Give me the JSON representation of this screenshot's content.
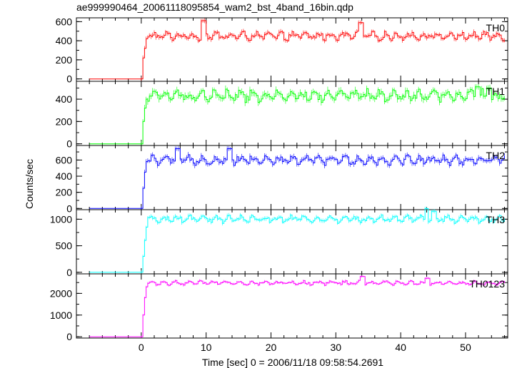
{
  "title": "ae999990464_20061118095854_wam2_bst_4band_16bin.qdp",
  "ylabel": "Counts/sec",
  "xlabel": "Time [sec] 0 = 2006/11/18 09:58:54.2691",
  "chart_data": [
    {
      "type": "line",
      "name": "TH0",
      "color": "#ff0000",
      "xlim": [
        -10,
        56.5
      ],
      "ylim": [
        -25,
        640
      ],
      "yticks": [
        0,
        200,
        400,
        600
      ],
      "xticks": [
        0,
        10,
        20,
        30,
        40,
        50
      ],
      "baseline": 0,
      "rise": [
        [
          0,
          0
        ],
        [
          0.25,
          220
        ],
        [
          0.5,
          320
        ],
        [
          0.75,
          420
        ]
      ],
      "level": 450,
      "amplitude": 45,
      "peaks": [
        [
          9.5,
          610
        ],
        [
          33.8,
          590
        ]
      ],
      "x_end": 56
    },
    {
      "type": "line",
      "name": "TH1",
      "color": "#00ff00",
      "xlim": [
        -10,
        56.5
      ],
      "ylim": [
        -15,
        560
      ],
      "yticks": [
        0,
        200,
        400
      ],
      "xticks": [
        0,
        10,
        20,
        30,
        40,
        50
      ],
      "baseline": 0,
      "rise": [
        [
          0,
          0
        ],
        [
          0.25,
          200
        ],
        [
          0.5,
          320
        ],
        [
          0.75,
          400
        ]
      ],
      "level": 430,
      "amplitude": 55,
      "peaks": [
        [
          51.8,
          510
        ],
        [
          53.5,
          500
        ]
      ],
      "x_end": 56
    },
    {
      "type": "line",
      "name": "TH2",
      "color": "#0000ff",
      "xlim": [
        -10,
        56.5
      ],
      "ylim": [
        -15,
        780
      ],
      "yticks": [
        0,
        200,
        400,
        600
      ],
      "xticks": [
        0,
        10,
        20,
        30,
        40,
        50
      ],
      "baseline": 0,
      "rise": [
        [
          0,
          0
        ],
        [
          0.25,
          250
        ],
        [
          0.5,
          450
        ],
        [
          0.75,
          580
        ]
      ],
      "level": 600,
      "amplitude": 60,
      "peaks": [
        [
          5.5,
          740
        ],
        [
          13.5,
          740
        ]
      ],
      "x_end": 56
    },
    {
      "type": "line",
      "name": "TH3",
      "color": "#00ffff",
      "xlim": [
        -10,
        56.5
      ],
      "ylim": [
        -30,
        1180
      ],
      "yticks": [
        0,
        500,
        1000
      ],
      "xticks": [
        0,
        10,
        20,
        30,
        40,
        50
      ],
      "baseline": 0,
      "rise": [
        [
          0,
          0
        ],
        [
          0.25,
          300
        ],
        [
          0.5,
          600
        ],
        [
          0.75,
          850
        ]
      ],
      "level": 1000,
      "amplitude": 70,
      "peaks": [
        [
          43.9,
          1200
        ],
        [
          45,
          1150
        ]
      ],
      "x_end": 56
    },
    {
      "type": "line",
      "name": "TH0123",
      "color": "#ff00ff",
      "xlim": [
        -10,
        56.5
      ],
      "ylim": [
        -60,
        2900
      ],
      "yticks": [
        0,
        1000,
        2000
      ],
      "xticks": [
        0,
        10,
        20,
        30,
        40,
        50
      ],
      "baseline": 0,
      "rise": [
        [
          0,
          0
        ],
        [
          0.25,
          1000
        ],
        [
          0.5,
          1800
        ],
        [
          0.75,
          2300
        ]
      ],
      "level": 2480,
      "amplitude": 100,
      "peaks": [
        [
          34,
          2780
        ],
        [
          44,
          2700
        ]
      ],
      "x_end": 56
    }
  ]
}
